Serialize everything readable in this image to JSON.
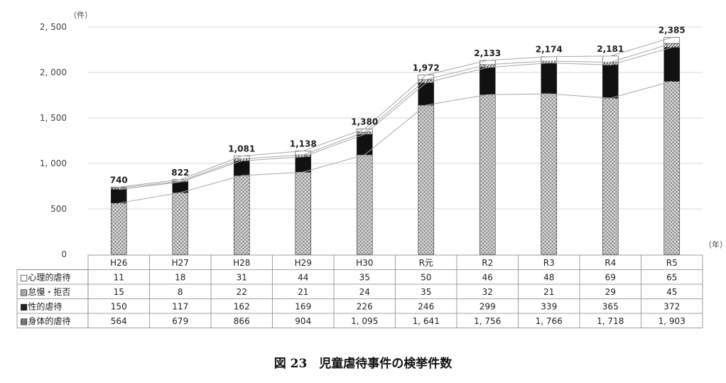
{
  "caption": "図 23　児童虐待事件の検挙件数",
  "chart_data": {
    "type": "bar",
    "stacked": true,
    "categories": [
      "H26",
      "H27",
      "H28",
      "H29",
      "H30",
      "R元",
      "R2",
      "R3",
      "R4",
      "R5"
    ],
    "series": [
      {
        "name": "身体的虐待",
        "values": [
          564,
          679,
          866,
          904,
          1095,
          1641,
          1756,
          1766,
          1718,
          1903
        ],
        "display": [
          "564",
          "679",
          "866",
          "904",
          "1, 095",
          "1, 641",
          "1, 756",
          "1, 766",
          "1, 718",
          "1, 903"
        ],
        "marker": "▩",
        "pattern": "crosshatch-gray"
      },
      {
        "name": "性的虐待",
        "values": [
          150,
          117,
          162,
          169,
          226,
          246,
          299,
          339,
          365,
          372
        ],
        "display": [
          "150",
          "117",
          "162",
          "169",
          "226",
          "246",
          "299",
          "339",
          "365",
          "372"
        ],
        "marker": "■",
        "pattern": "solid-black"
      },
      {
        "name": "怠慢・拒否",
        "values": [
          15,
          8,
          22,
          21,
          24,
          35,
          32,
          21,
          29,
          45
        ],
        "display": [
          "15",
          "8",
          "22",
          "21",
          "24",
          "35",
          "32",
          "21",
          "29",
          "45"
        ],
        "marker": "▨",
        "pattern": "diagonal-stripes"
      },
      {
        "name": "心理的虐待",
        "values": [
          11,
          18,
          31,
          44,
          35,
          50,
          46,
          48,
          69,
          65
        ],
        "display": [
          "11",
          "18",
          "31",
          "44",
          "35",
          "50",
          "46",
          "48",
          "69",
          "65"
        ],
        "marker": "□",
        "pattern": "white"
      }
    ],
    "table_row_order": [
      "心理的虐待",
      "怠慢・拒否",
      "性的虐待",
      "身体的虐待"
    ],
    "totals": [
      "740",
      "822",
      "1,081",
      "1,138",
      "1,380",
      "1,972",
      "2,133",
      "2,174",
      "2,181",
      "2,385"
    ],
    "highlight_total_index": 9,
    "highlight_color": "#e8202a",
    "y_ticks": [
      "0",
      "500",
      "1, 000",
      "1, 500",
      "2, 000",
      "2, 500"
    ],
    "y_tick_values": [
      0,
      500,
      1000,
      1500,
      2000,
      2500
    ],
    "ylim": [
      0,
      2500
    ],
    "y_unit": "（件）",
    "x_unit": "（年）",
    "grid": true,
    "legend": "data-table"
  }
}
